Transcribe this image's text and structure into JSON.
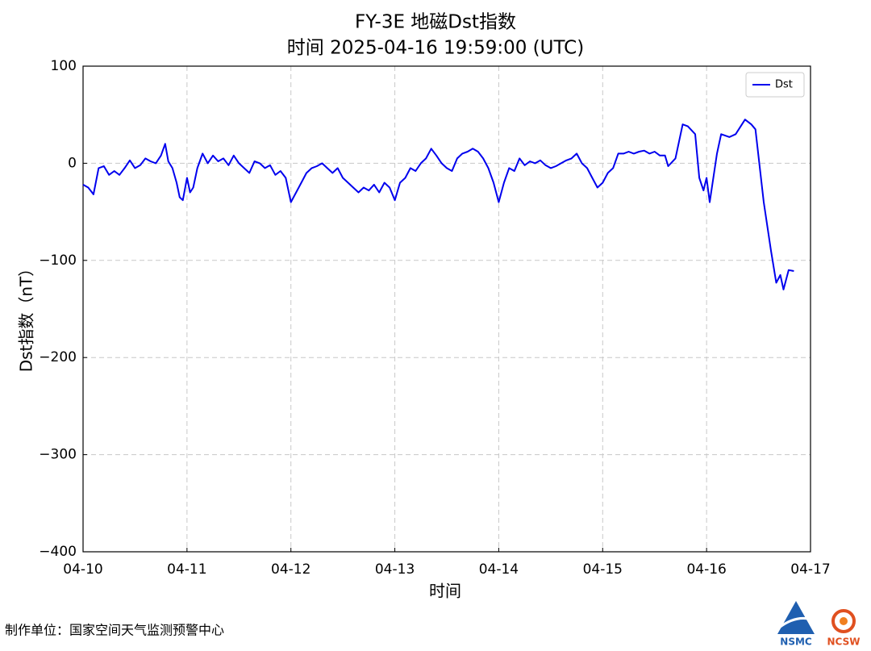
{
  "chart_data": {
    "type": "line",
    "title": "FY-3E 地磁Dst指数",
    "subtitle": "时间 2025-04-16 19:59:00 (UTC)",
    "x_label": "时间",
    "y_label": "Dst指数（nT）",
    "legend": "upper right",
    "grid": true,
    "xlim": [
      0,
      7
    ],
    "xticks": [
      {
        "value": 0,
        "label": "04-10"
      },
      {
        "value": 1,
        "label": "04-11"
      },
      {
        "value": 2,
        "label": "04-12"
      },
      {
        "value": 3,
        "label": "04-13"
      },
      {
        "value": 4,
        "label": "04-14"
      },
      {
        "value": 5,
        "label": "04-15"
      },
      {
        "value": 6,
        "label": "04-16"
      },
      {
        "value": 7,
        "label": "04-17"
      }
    ],
    "ylim": [
      -400,
      100
    ],
    "yticks": [
      {
        "value": -400,
        "label": "−400"
      },
      {
        "value": -300,
        "label": "−300"
      },
      {
        "value": -200,
        "label": "−200"
      },
      {
        "value": -100,
        "label": "−100"
      },
      0,
      100
    ],
    "series": [
      {
        "name": "Dst",
        "color": "#0000ee",
        "x": [
          0,
          0.05,
          0.1,
          0.15,
          0.2,
          0.25,
          0.3,
          0.35,
          0.4,
          0.45,
          0.5,
          0.55,
          0.6,
          0.65,
          0.7,
          0.75,
          0.79,
          0.82,
          0.86,
          0.9,
          0.93,
          0.96,
          1.0,
          1.03,
          1.06,
          1.1,
          1.15,
          1.2,
          1.25,
          1.3,
          1.35,
          1.4,
          1.45,
          1.5,
          1.55,
          1.6,
          1.65,
          1.7,
          1.75,
          1.8,
          1.85,
          1.9,
          1.95,
          2.0,
          2.05,
          2.1,
          2.15,
          2.2,
          2.25,
          2.3,
          2.35,
          2.4,
          2.45,
          2.5,
          2.55,
          2.6,
          2.65,
          2.7,
          2.75,
          2.8,
          2.85,
          2.9,
          2.95,
          3.0,
          3.05,
          3.1,
          3.15,
          3.2,
          3.25,
          3.3,
          3.35,
          3.4,
          3.45,
          3.5,
          3.55,
          3.6,
          3.65,
          3.7,
          3.75,
          3.8,
          3.85,
          3.9,
          3.95,
          4.0,
          4.05,
          4.1,
          4.15,
          4.2,
          4.25,
          4.3,
          4.35,
          4.4,
          4.45,
          4.5,
          4.55,
          4.6,
          4.65,
          4.7,
          4.75,
          4.8,
          4.85,
          4.9,
          4.95,
          5.0,
          5.05,
          5.1,
          5.15,
          5.2,
          5.25,
          5.3,
          5.35,
          5.4,
          5.45,
          5.5,
          5.55,
          5.6,
          5.63,
          5.7,
          5.77,
          5.82,
          5.89,
          5.93,
          5.97,
          6.0,
          6.03,
          6.1,
          6.14,
          6.22,
          6.28,
          6.37,
          6.43,
          6.47,
          6.55,
          6.62,
          6.67,
          6.71,
          6.74,
          6.79,
          6.84
        ],
        "values": [
          -22,
          -25,
          -32,
          -5,
          -3,
          -12,
          -8,
          -12,
          -5,
          3,
          -5,
          -2,
          5,
          2,
          0,
          8,
          20,
          2,
          -5,
          -20,
          -35,
          -38,
          -15,
          -30,
          -25,
          -5,
          10,
          0,
          8,
          2,
          5,
          -2,
          8,
          0,
          -5,
          -10,
          2,
          0,
          -5,
          -2,
          -12,
          -8,
          -15,
          -40,
          -30,
          -20,
          -10,
          -5,
          -3,
          0,
          -5,
          -10,
          -5,
          -15,
          -20,
          -25,
          -30,
          -25,
          -28,
          -22,
          -30,
          -20,
          -25,
          -38,
          -20,
          -15,
          -5,
          -8,
          0,
          5,
          15,
          8,
          0,
          -5,
          -8,
          5,
          10,
          12,
          15,
          12,
          5,
          -5,
          -20,
          -40,
          -20,
          -5,
          -8,
          5,
          -2,
          2,
          0,
          3,
          -2,
          -5,
          -3,
          0,
          3,
          5,
          10,
          0,
          -5,
          -15,
          -25,
          -20,
          -10,
          -5,
          10,
          10,
          12,
          10,
          12,
          13,
          10,
          12,
          8,
          8,
          -3,
          5,
          40,
          38,
          30,
          -15,
          -28,
          -15,
          -40,
          10,
          30,
          27,
          30,
          45,
          40,
          35,
          -40,
          -90,
          -123,
          -115,
          -130,
          -110,
          -111
        ]
      }
    ],
    "footer": "制作单位：国家空间天气监测预警中心",
    "logos": [
      "NSMC",
      "NCSW"
    ]
  }
}
